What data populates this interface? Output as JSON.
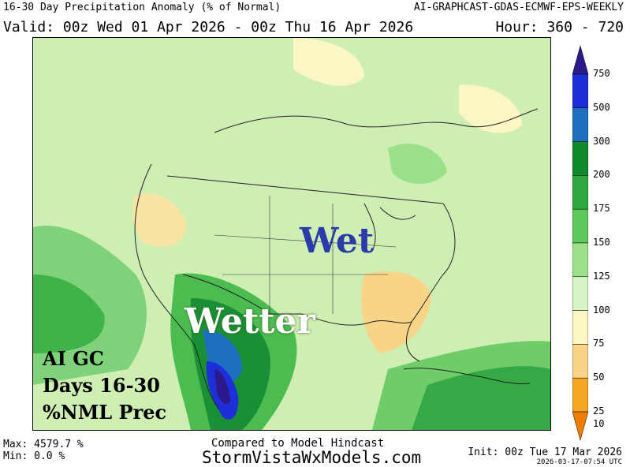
{
  "header": {
    "title": "16-30 Day Precipitation Anomaly (% of Normal)",
    "model": "AI-GRAPHCAST-GDAS-ECMWF-EPS-WEEKLY",
    "valid": "Valid: 00z Wed 01 Apr 2026 - 00z Thu 16 Apr 2026",
    "hour": "Hour: 360 - 720"
  },
  "map": {
    "label_wet": "Wet",
    "label_wetter": "Wetter",
    "brand_lines": [
      "AI GC",
      "Days 16-30",
      "%NML Prec"
    ]
  },
  "legend": {
    "levels": [
      {
        "label": "750",
        "color": "#2a1a8a"
      },
      {
        "label": "500",
        "color": "#1c2fd8"
      },
      {
        "label": "300",
        "color": "#1f6fc0"
      },
      {
        "label": "200",
        "color": "#0e8a2c"
      },
      {
        "label": "175",
        "color": "#2ea83f"
      },
      {
        "label": "150",
        "color": "#5cc85a"
      },
      {
        "label": "125",
        "color": "#9be08a"
      },
      {
        "label": "100",
        "color": "#d6f5c6"
      },
      {
        "label": "75",
        "color": "#fbf6c4"
      },
      {
        "label": "50",
        "color": "#f7d487"
      },
      {
        "label": "25",
        "color": "#f5a623"
      },
      {
        "label": "10",
        "color": "#f07d00"
      }
    ]
  },
  "footer": {
    "max": "Max: 4579.7 %",
    "min": "Min: 0.0 %",
    "compared": "Compared to Model Hindcast",
    "site": "StormVistaWxModels.com",
    "init": "Init: 00z Tue 17 Mar 2026",
    "stamp": "2026-03-17-07:54 UTC"
  }
}
